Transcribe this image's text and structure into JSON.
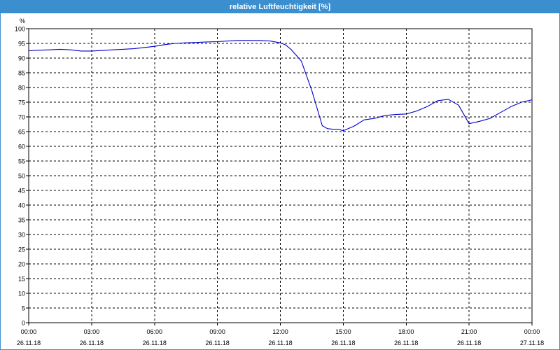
{
  "chart_data": {
    "type": "line",
    "title": "relative Luftfeuchtigkeit [%]",
    "ylabel": "%",
    "xlabel": "",
    "ylim": [
      0,
      100
    ],
    "yticks": [
      0,
      5,
      10,
      15,
      20,
      25,
      30,
      35,
      40,
      45,
      50,
      55,
      60,
      65,
      70,
      75,
      80,
      85,
      90,
      95,
      100
    ],
    "xlim": [
      "26.11.18 00:00",
      "27.11.18 00:00"
    ],
    "xticks": [
      {
        "time": "00:00",
        "date": "26.11.18"
      },
      {
        "time": "03:00",
        "date": "26.11.18"
      },
      {
        "time": "06:00",
        "date": "26.11.18"
      },
      {
        "time": "09:00",
        "date": "26.11.18"
      },
      {
        "time": "12:00",
        "date": "26.11.18"
      },
      {
        "time": "15:00",
        "date": "26.11.18"
      },
      {
        "time": "18:00",
        "date": "26.11.18"
      },
      {
        "time": "21:00",
        "date": "26.11.18"
      },
      {
        "time": "00:00",
        "date": "27.11.18"
      }
    ],
    "grid": true,
    "line_color": "#0000cc",
    "series": [
      {
        "x": [
          "00:00",
          "00:30",
          "01:00",
          "01:30",
          "02:00",
          "02:30",
          "03:00",
          "03:30",
          "04:00",
          "04:30",
          "05:00",
          "05:30",
          "06:00",
          "06:30",
          "07:00",
          "07:30",
          "08:00",
          "08:30",
          "09:00",
          "09:30",
          "10:00",
          "10:30",
          "11:00",
          "11:30",
          "12:00",
          "12:15",
          "12:30",
          "12:45",
          "13:00",
          "13:15",
          "13:30",
          "13:45",
          "14:00",
          "14:15",
          "14:30",
          "14:45",
          "15:00",
          "15:30",
          "16:00",
          "16:30",
          "17:00",
          "17:30",
          "18:00",
          "18:30",
          "19:00",
          "19:30",
          "20:00",
          "20:30",
          "21:00",
          "21:30",
          "22:00",
          "22:30",
          "23:00",
          "23:30",
          "24:00"
        ],
        "values": [
          92.5,
          92.7,
          92.8,
          93.0,
          92.8,
          92.4,
          92.4,
          92.6,
          92.8,
          93.0,
          93.2,
          93.6,
          94.0,
          94.6,
          95.0,
          95.2,
          95.3,
          95.5,
          95.6,
          95.8,
          96.0,
          96.0,
          96.0,
          95.8,
          95.2,
          94.5,
          93.0,
          91.0,
          89.0,
          84.0,
          79.0,
          73.0,
          67.0,
          66.0,
          65.8,
          65.8,
          65.3,
          66.8,
          69.0,
          69.5,
          70.5,
          70.8,
          71.0,
          72.0,
          73.5,
          75.5,
          76.0,
          74.0,
          67.7,
          68.5,
          69.5,
          71.5,
          73.5,
          75.0,
          75.8
        ]
      }
    ]
  }
}
